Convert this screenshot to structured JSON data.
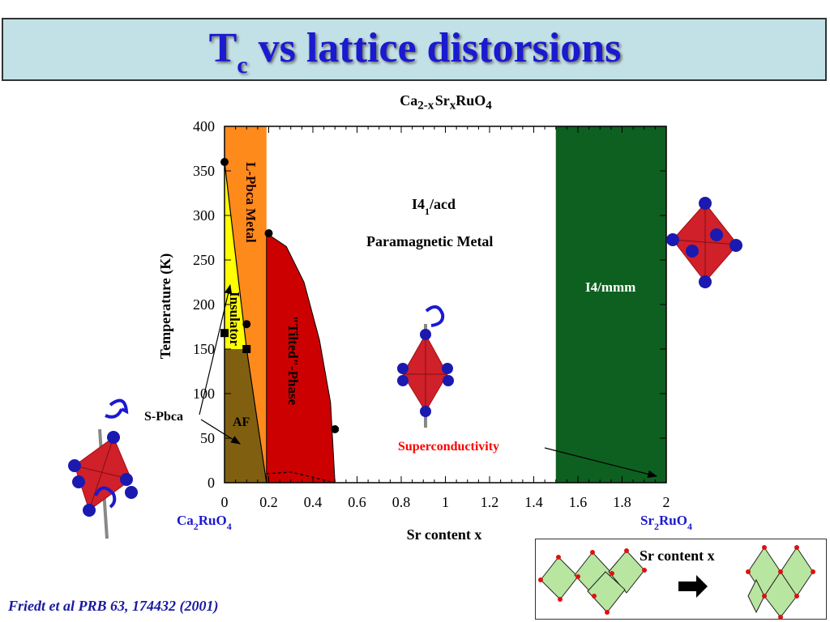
{
  "slide": {
    "title_main": "T",
    "title_sub": "c",
    "title_rest": " vs lattice distorsions",
    "citation": "Friedt et al  PRB 63, 174432 (2001)"
  },
  "chart_data": {
    "type": "area",
    "title_parts": [
      "Ca",
      "2-x",
      "Sr",
      "x",
      "RuO",
      "4"
    ],
    "xlabel": "Sr content x",
    "ylabel": "Temperature (K)",
    "xlim": [
      0,
      2
    ],
    "ylim": [
      0,
      400
    ],
    "xticks": [
      "0",
      "0.2",
      "0.4",
      "0.6",
      "0.8",
      "1",
      "1.2",
      "1.4",
      "1.6",
      "1.8",
      "2"
    ],
    "yticks": [
      "0",
      "50",
      "100",
      "150",
      "200",
      "250",
      "300",
      "350",
      "400"
    ],
    "x_end_labels": {
      "left": [
        "Ca",
        "2",
        "RuO",
        "4"
      ],
      "right": [
        "Sr",
        "2",
        "RuO",
        "4"
      ]
    },
    "regions": [
      {
        "label": "L-Pbca Metal",
        "color": "#ff8a1c"
      },
      {
        "label": "Insulator",
        "color": "#ffff00"
      },
      {
        "label": "AF",
        "color": "#806010"
      },
      {
        "label": "\"Tilted\"-Phase",
        "color": "#cc0000"
      },
      {
        "label": "I4/mmm",
        "color": "#0e6020"
      }
    ],
    "region_bounds": {
      "orange_x": [
        0,
        0.19
      ],
      "tilted_x": [
        0.19,
        0.5
      ],
      "tilted_top": 280,
      "green_x": [
        1.5,
        2
      ]
    },
    "boundary_insulator": [
      [
        0,
        360
      ],
      [
        0.1,
        150
      ],
      [
        0.19,
        0
      ]
    ],
    "boundary_tilted": [
      [
        0.19,
        280
      ],
      [
        0.28,
        265
      ],
      [
        0.36,
        225
      ],
      [
        0.43,
        160
      ],
      [
        0.48,
        90
      ],
      [
        0.5,
        0
      ]
    ],
    "dashed_sc": [
      [
        0.19,
        10
      ],
      [
        0.3,
        12
      ],
      [
        0.4,
        6
      ],
      [
        0.5,
        0
      ]
    ],
    "annotations": {
      "i41acd": [
        "I4",
        "1",
        "/acd"
      ],
      "paramagnetic": "Paramagnetic Metal",
      "superconductivity": "Superconductivity",
      "s_pbca": "S-Pbca"
    },
    "points_circle": [
      [
        0,
        360
      ],
      [
        0.2,
        280
      ],
      [
        0.1,
        178
      ],
      [
        0.5,
        60
      ]
    ],
    "points_square": [
      [
        0,
        168
      ],
      [
        0.1,
        150
      ]
    ],
    "inset_label": "Sr content x"
  }
}
